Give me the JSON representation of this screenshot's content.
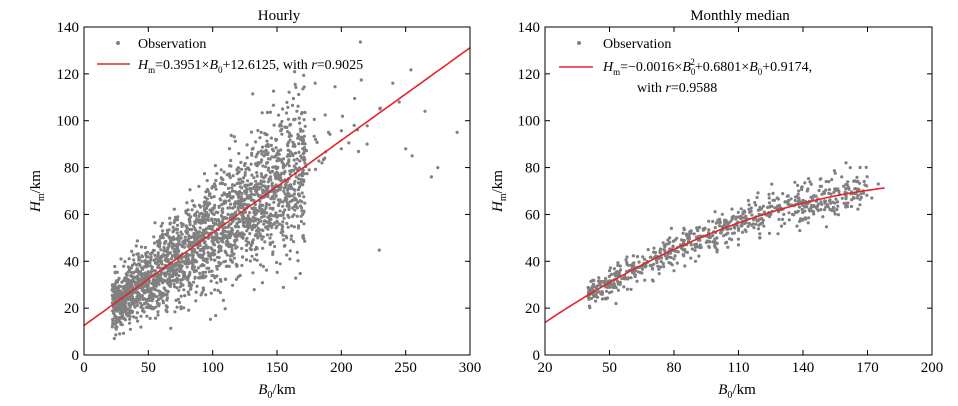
{
  "figure": {
    "background": "#ffffff"
  },
  "colors": {
    "points": "#808080",
    "fit": "#e3242b",
    "axis": "#000000"
  },
  "chart_data": [
    {
      "type": "scatter",
      "title": "Hourly",
      "xlabel": {
        "var": "B",
        "sub": "0",
        "unit": "/km"
      },
      "ylabel": {
        "var": "H",
        "sub": "m",
        "unit": "/km"
      },
      "xlim": [
        0,
        300
      ],
      "ylim": [
        0,
        140
      ],
      "xticks": [
        0,
        50,
        100,
        150,
        200,
        250,
        300
      ],
      "yticks": [
        0,
        20,
        40,
        60,
        80,
        100,
        120,
        140
      ],
      "legend": {
        "position": "top-left",
        "observation_label": "Observation",
        "fit_label": {
          "lhs_var": "H",
          "lhs_sub": "m",
          "rhs1": "=0.3951×",
          "var2": "B",
          "sub2": "0",
          "rhs2": "+12.6125, with ",
          "r_var": "r",
          "r_value": "=0.9025"
        }
      },
      "fit": {
        "model": "linear",
        "coefficients": {
          "slope": 0.3951,
          "intercept": 12.6125
        },
        "r": 0.9025,
        "x_range": [
          0,
          300
        ]
      },
      "observations": {
        "summary": "dense cloud of hourly observations along the fit line",
        "samples": [
          [
            22,
            12
          ],
          [
            25,
            11
          ],
          [
            28,
            16
          ],
          [
            30,
            20
          ],
          [
            32,
            24
          ],
          [
            35,
            22
          ],
          [
            38,
            27
          ],
          [
            40,
            30
          ],
          [
            42,
            26
          ],
          [
            45,
            33
          ],
          [
            48,
            31
          ],
          [
            50,
            35
          ],
          [
            52,
            38
          ],
          [
            55,
            36
          ],
          [
            58,
            40
          ],
          [
            60,
            42
          ],
          [
            62,
            37
          ],
          [
            65,
            44
          ],
          [
            68,
            41
          ],
          [
            70,
            47
          ],
          [
            72,
            43
          ],
          [
            75,
            50
          ],
          [
            78,
            46
          ],
          [
            80,
            52
          ],
          [
            82,
            48
          ],
          [
            85,
            55
          ],
          [
            88,
            50
          ],
          [
            90,
            57
          ],
          [
            92,
            52
          ],
          [
            95,
            60
          ],
          [
            98,
            54
          ],
          [
            100,
            62
          ],
          [
            102,
            56
          ],
          [
            105,
            63
          ],
          [
            108,
            58
          ],
          [
            110,
            65
          ],
          [
            112,
            60
          ],
          [
            115,
            67
          ],
          [
            118,
            61
          ],
          [
            120,
            68
          ],
          [
            122,
            63
          ],
          [
            125,
            70
          ],
          [
            128,
            64
          ],
          [
            130,
            71
          ],
          [
            132,
            66
          ],
          [
            135,
            73
          ],
          [
            138,
            67
          ],
          [
            140,
            74
          ],
          [
            142,
            69
          ],
          [
            145,
            76
          ],
          [
            148,
            70
          ],
          [
            150,
            78
          ],
          [
            152,
            72
          ],
          [
            155,
            80
          ],
          [
            158,
            74
          ],
          [
            160,
            85
          ],
          [
            165,
            76
          ],
          [
            170,
            88
          ],
          [
            175,
            79
          ],
          [
            180,
            92
          ],
          [
            185,
            82
          ],
          [
            190,
            95
          ],
          [
            200,
            88
          ],
          [
            210,
            98
          ],
          [
            220,
            90
          ],
          [
            230,
            105
          ],
          [
            240,
            116
          ],
          [
            245,
            108
          ],
          [
            250,
            88
          ],
          [
            255,
            85
          ],
          [
            265,
            104
          ],
          [
            270,
            76
          ],
          [
            275,
            80
          ],
          [
            290,
            95
          ],
          [
            35,
            18
          ],
          [
            55,
            28
          ],
          [
            75,
            32
          ],
          [
            95,
            40
          ],
          [
            115,
            45
          ],
          [
            135,
            50
          ],
          [
            60,
            55
          ],
          [
            80,
            65
          ],
          [
            100,
            72
          ],
          [
            120,
            78
          ],
          [
            140,
            85
          ],
          [
            110,
            40
          ],
          [
            130,
            45
          ],
          [
            150,
            55
          ],
          [
            170,
            60
          ],
          [
            45,
            40
          ]
        ]
      }
    },
    {
      "type": "scatter",
      "title": "Monthly median",
      "xlabel": {
        "var": "B",
        "sub": "0",
        "unit": "/km"
      },
      "ylabel": {
        "var": "H",
        "sub": "m",
        "unit": "/km"
      },
      "xlim": [
        20,
        200
      ],
      "ylim": [
        0,
        140
      ],
      "xticks": [
        20,
        50,
        80,
        110,
        140,
        170,
        200
      ],
      "yticks": [
        0,
        20,
        40,
        60,
        80,
        100,
        120,
        140
      ],
      "legend": {
        "position": "top-left",
        "observation_label": "Observation",
        "fit_label": {
          "lhs_var": "H",
          "lhs_sub": "m",
          "rhs1": "=−0.0016×",
          "var2": "B",
          "sub2": "0",
          "sup2": "2",
          "rhs2": "+0.6801×",
          "var3": "B",
          "sub3": "0",
          "rhs3": "+0.9174,",
          "line2_prefix": "with ",
          "r_var": "r",
          "r_value": "=0.9588"
        }
      },
      "fit": {
        "model": "quadratic",
        "coefficients": {
          "a": -0.0016,
          "b": 0.6801,
          "c": 0.9174
        },
        "r": 0.9588,
        "x_range": [
          20,
          178
        ]
      },
      "observations": {
        "summary": "monthly median observations following the quadratic fit",
        "samples": [
          [
            40,
            25
          ],
          [
            42,
            28
          ],
          [
            45,
            27
          ],
          [
            48,
            30
          ],
          [
            50,
            29
          ],
          [
            52,
            32
          ],
          [
            55,
            31
          ],
          [
            57,
            34
          ],
          [
            60,
            33
          ],
          [
            62,
            36
          ],
          [
            65,
            35
          ],
          [
            67,
            38
          ],
          [
            70,
            37
          ],
          [
            72,
            40
          ],
          [
            75,
            39
          ],
          [
            77,
            42
          ],
          [
            80,
            41
          ],
          [
            82,
            44
          ],
          [
            85,
            45
          ],
          [
            88,
            47
          ],
          [
            90,
            46
          ],
          [
            92,
            49
          ],
          [
            95,
            48
          ],
          [
            98,
            51
          ],
          [
            100,
            50
          ],
          [
            102,
            53
          ],
          [
            105,
            52
          ],
          [
            108,
            55
          ],
          [
            110,
            54
          ],
          [
            112,
            57
          ],
          [
            115,
            56
          ],
          [
            118,
            59
          ],
          [
            120,
            58
          ],
          [
            122,
            61
          ],
          [
            125,
            60
          ],
          [
            128,
            63
          ],
          [
            130,
            62
          ],
          [
            133,
            65
          ],
          [
            135,
            64
          ],
          [
            138,
            67
          ],
          [
            140,
            66
          ],
          [
            142,
            70
          ],
          [
            145,
            68
          ],
          [
            148,
            72
          ],
          [
            150,
            69
          ],
          [
            152,
            74
          ],
          [
            155,
            71
          ],
          [
            158,
            76
          ],
          [
            160,
            82
          ],
          [
            162,
            80
          ],
          [
            165,
            74
          ],
          [
            168,
            70
          ],
          [
            172,
            67
          ],
          [
            175,
            73
          ],
          [
            53,
            22
          ],
          [
            60,
            28
          ],
          [
            70,
            32
          ],
          [
            80,
            36
          ],
          [
            90,
            40
          ],
          [
            100,
            44
          ],
          [
            110,
            47
          ],
          [
            120,
            50
          ],
          [
            130,
            55
          ],
          [
            140,
            58
          ],
          [
            150,
            62
          ],
          [
            160,
            64
          ],
          [
            68,
            45
          ],
          [
            78,
            50
          ],
          [
            88,
            53
          ],
          [
            98,
            57
          ],
          [
            118,
            64
          ],
          [
            128,
            67
          ],
          [
            138,
            70
          ],
          [
            148,
            75
          ],
          [
            45,
            33
          ],
          [
            50,
            36
          ],
          [
            55,
            38
          ],
          [
            63,
            42
          ],
          [
            85,
            38
          ],
          [
            105,
            46
          ]
        ]
      }
    }
  ]
}
